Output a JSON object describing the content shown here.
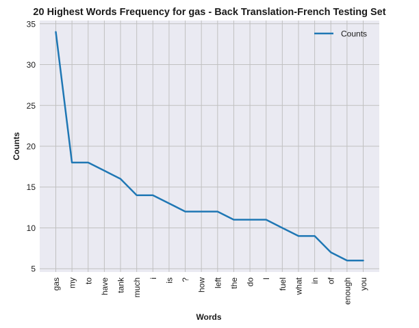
{
  "chart_data": {
    "type": "line",
    "title": "20 Highest Words Frequency for gas - Back Translation-French Testing Set",
    "xlabel": "Words",
    "ylabel": "Counts",
    "categories": [
      "gas",
      "my",
      "to",
      "have",
      "tank",
      "much",
      "i",
      "is",
      "?",
      "how",
      "left",
      "the",
      "do",
      "I",
      "fuel",
      "what",
      "in",
      "of",
      "enough",
      "you"
    ],
    "series": [
      {
        "name": "Counts",
        "values": [
          34,
          18,
          18,
          17,
          16,
          14,
          14,
          13,
          12,
          12,
          12,
          11,
          11,
          11,
          10,
          9,
          9,
          7,
          6,
          6
        ]
      }
    ],
    "ylim": [
      4.6,
      35.4
    ],
    "yticks": [
      5,
      10,
      15,
      20,
      25,
      30,
      35
    ],
    "grid": true,
    "legend_position": "top-right",
    "colors": {
      "line": "#1f77b4",
      "background": "#eaeaf2",
      "grid": "#c0c0c0"
    }
  }
}
